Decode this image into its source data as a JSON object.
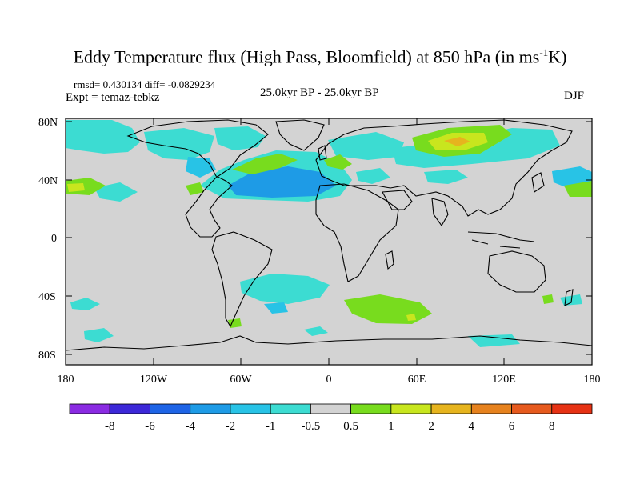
{
  "title": {
    "main": "Eddy Temperature flux (High Pass, Bloomfield) at 850 hPa (in ms",
    "sup": "-1",
    "end": "K)"
  },
  "stats": "rmsd= 0.430134 diff= -0.0829234",
  "experiment": "Expt = temaz-tebkz",
  "period": "25.0kyr BP - 25.0kyr BP",
  "season": "DJF",
  "lat_labels": [
    "80N",
    "40N",
    "0",
    "40S",
    "80S"
  ],
  "lon_labels": [
    "180",
    "120W",
    "60W",
    "0",
    "60E",
    "120E",
    "180"
  ],
  "colorbar": {
    "labels": [
      "-8",
      "-6",
      "-4",
      "-2",
      "-1",
      "-0.5",
      "0.5",
      "1",
      "2",
      "4",
      "6",
      "8"
    ],
    "colors": [
      "#8a2be2",
      "#3c28d8",
      "#1e64e6",
      "#1e9be6",
      "#28c3e6",
      "#3cdcd2",
      "#d3d3d3",
      "#78dc1e",
      "#c8e61e",
      "#e6b41e",
      "#e6821e",
      "#e65a1e",
      "#e63214"
    ]
  },
  "map_colors": {
    "ocean": "#d3d3d3",
    "coast": "#000000",
    "neg_weak": "#3cdcd2",
    "neg_mid": "#28c3e6",
    "neg_strong": "#1e9be6",
    "pos_weak": "#78dc1e",
    "pos_mid": "#c8e61e",
    "pos_strong": "#e6b41e"
  }
}
